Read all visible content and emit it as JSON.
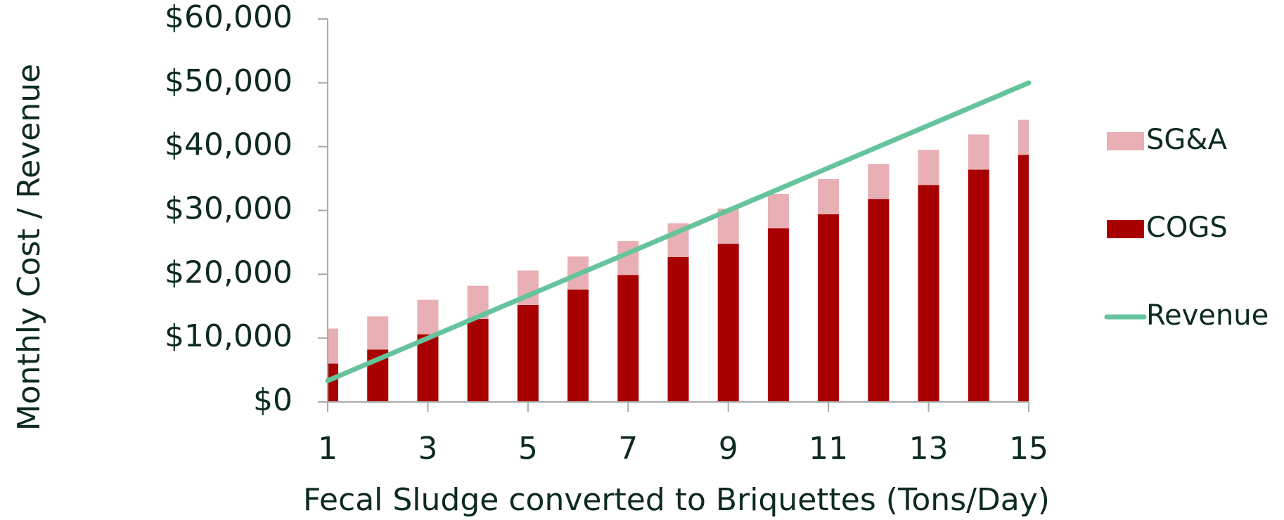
{
  "chart_data": {
    "type": "bar",
    "stacked": true,
    "xlabel": "Fecal Sludge converted to Briquettes (Tons/Day)",
    "ylabel": "Monthly Cost / Revenue",
    "x": [
      1,
      2,
      3,
      4,
      5,
      6,
      7,
      8,
      9,
      10,
      11,
      12,
      13,
      14,
      15
    ],
    "series": [
      {
        "name": "SG&A",
        "type": "bar",
        "color": "#e8b0b4",
        "values": [
          5500,
          5200,
          5400,
          5200,
          5400,
          5200,
          5300,
          5300,
          5500,
          5400,
          5500,
          5500,
          5500,
          5500,
          5500
        ]
      },
      {
        "name": "COGS",
        "type": "bar",
        "color": "#a80000",
        "values": [
          6000,
          8200,
          10600,
          13000,
          15200,
          17600,
          19900,
          22700,
          24800,
          27200,
          29400,
          31800,
          34000,
          36400,
          38700
        ]
      },
      {
        "name": "Revenue",
        "type": "line",
        "color": "#66c49c",
        "values": [
          3333,
          6667,
          10000,
          13333,
          16667,
          20000,
          23333,
          26667,
          30000,
          33333,
          36667,
          40000,
          43333,
          46667,
          50000
        ]
      }
    ],
    "xlim": [
      1,
      15
    ],
    "xticks": [
      1,
      3,
      5,
      7,
      9,
      11,
      13,
      15
    ],
    "ylim": [
      0,
      60000
    ],
    "yticks": [
      {
        "value": 0,
        "label": "$0"
      },
      {
        "value": 10000,
        "label": "$10,000"
      },
      {
        "value": 20000,
        "label": "$20,000"
      },
      {
        "value": 30000,
        "label": "$30,000"
      },
      {
        "value": 40000,
        "label": "$40,000"
      },
      {
        "value": 50000,
        "label": "$50,000"
      },
      {
        "value": 60000,
        "label": "$60,000"
      }
    ],
    "legend": "right"
  }
}
